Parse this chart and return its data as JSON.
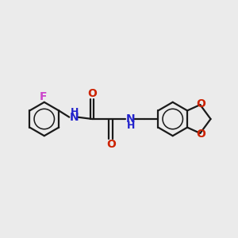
{
  "bg_color": "#ebebeb",
  "bond_color": "#1a1a1a",
  "N_color": "#2222cc",
  "O_color": "#cc2200",
  "F_color": "#cc44cc",
  "line_width": 1.6,
  "font_size": 10,
  "fig_size": [
    3.0,
    3.0
  ],
  "dpi": 100,
  "xlim": [
    0,
    10
  ],
  "ylim": [
    2,
    8
  ]
}
